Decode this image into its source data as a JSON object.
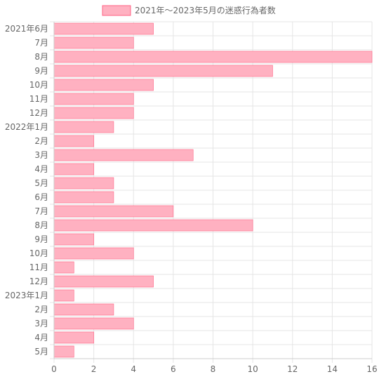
{
  "chart_data": {
    "type": "bar",
    "orientation": "horizontal",
    "legend": {
      "label": "2021年～2023年5月の迷惑行為者数",
      "placement": "top-center"
    },
    "colors": {
      "bar_fill": "#ffb1c1",
      "bar_stroke": "#ff6384",
      "grid": "#e5e5e5",
      "axis": "#cccccc",
      "text": "#666666"
    },
    "categories": [
      "2021年6月",
      "7月",
      "8月",
      "9月",
      "10月",
      "11月",
      "12月",
      "2022年1月",
      "2月",
      "3月",
      "4月",
      "5月",
      "6月",
      "7月",
      "8月",
      "9月",
      "10月",
      "11月",
      "12月",
      "2023年1月",
      "2月",
      "3月",
      "4月",
      "5月"
    ],
    "values": [
      5,
      4,
      16,
      11,
      5,
      4,
      4,
      3,
      2,
      7,
      2,
      3,
      3,
      6,
      10,
      2,
      4,
      1,
      5,
      1,
      3,
      4,
      2,
      1
    ],
    "xlim": [
      0,
      16
    ],
    "xticks": [
      "0",
      "2",
      "4",
      "6",
      "8",
      "10",
      "12",
      "14",
      "16"
    ],
    "grid": true
  }
}
